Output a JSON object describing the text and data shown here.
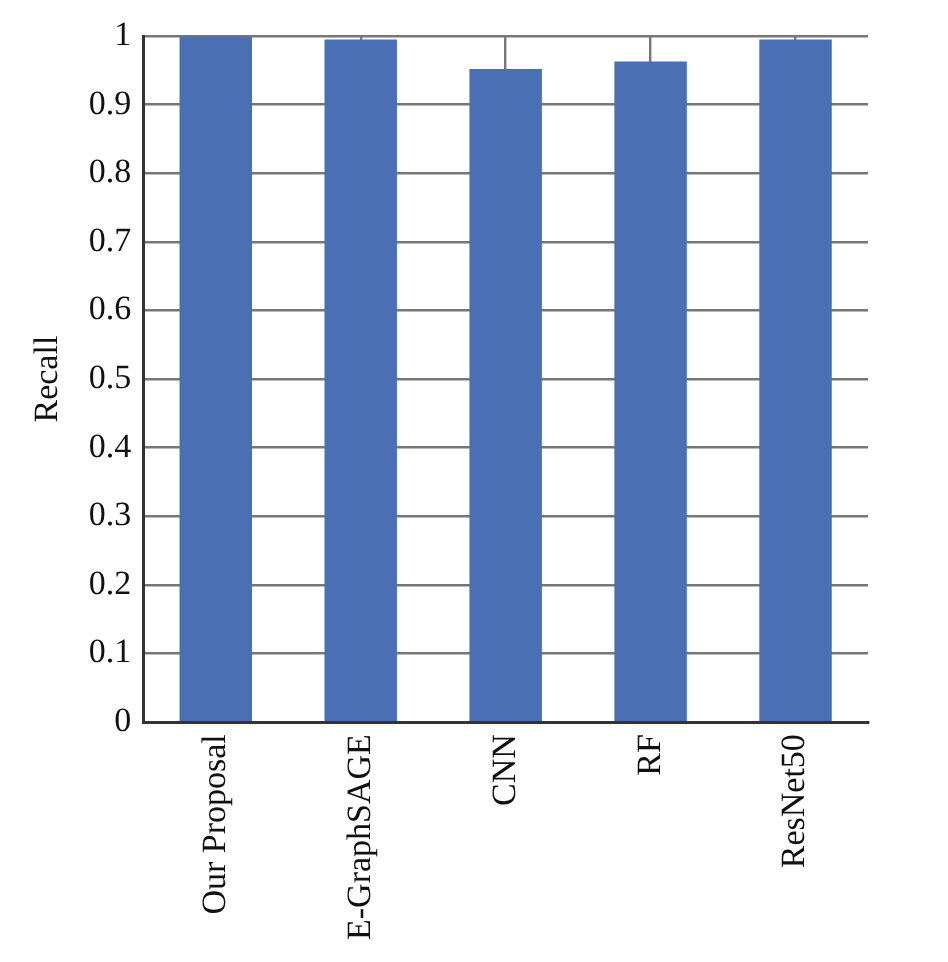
{
  "chart_data": {
    "type": "bar",
    "ylabel": "Recall",
    "categories": [
      "Our Proposal",
      "E-GraphSAGE",
      "CNN",
      "RF",
      "ResNet50"
    ],
    "values": [
      0.999,
      0.995,
      0.952,
      0.963,
      0.995
    ],
    "color": "#4a6fb5",
    "ylim": [
      0,
      1
    ],
    "yticks": [
      0,
      0.1,
      0.2,
      0.3,
      0.4,
      0.5,
      0.6,
      0.7,
      0.8,
      0.9,
      1
    ],
    "grid": true
  }
}
